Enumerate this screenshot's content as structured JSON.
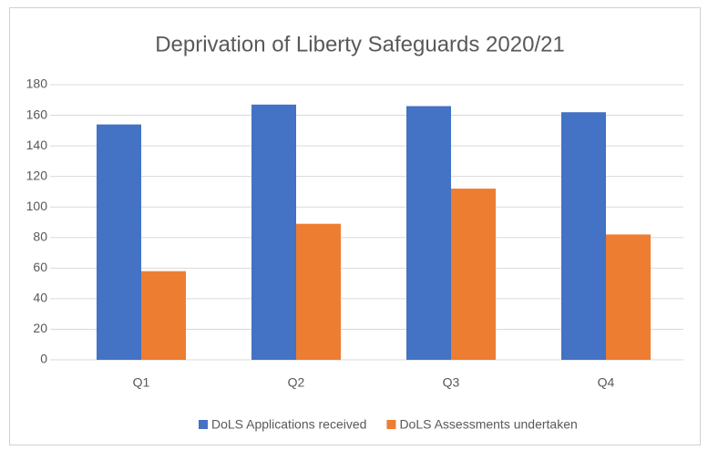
{
  "chart_data": {
    "type": "bar",
    "title": "Deprivation of Liberty Safeguards 2020/21",
    "categories": [
      "Q1",
      "Q2",
      "Q3",
      "Q4"
    ],
    "series": [
      {
        "name": "DoLS Applications received",
        "color": "#4472c4",
        "values": [
          154,
          167,
          166,
          162
        ]
      },
      {
        "name": "DoLS Assessments undertaken",
        "color": "#ed7d31",
        "values": [
          58,
          89,
          112,
          82
        ]
      }
    ],
    "ylim": [
      0,
      180
    ],
    "yticks": [
      0,
      20,
      40,
      60,
      80,
      100,
      120,
      140,
      160,
      180
    ],
    "grid": true,
    "legend": "bottom"
  }
}
